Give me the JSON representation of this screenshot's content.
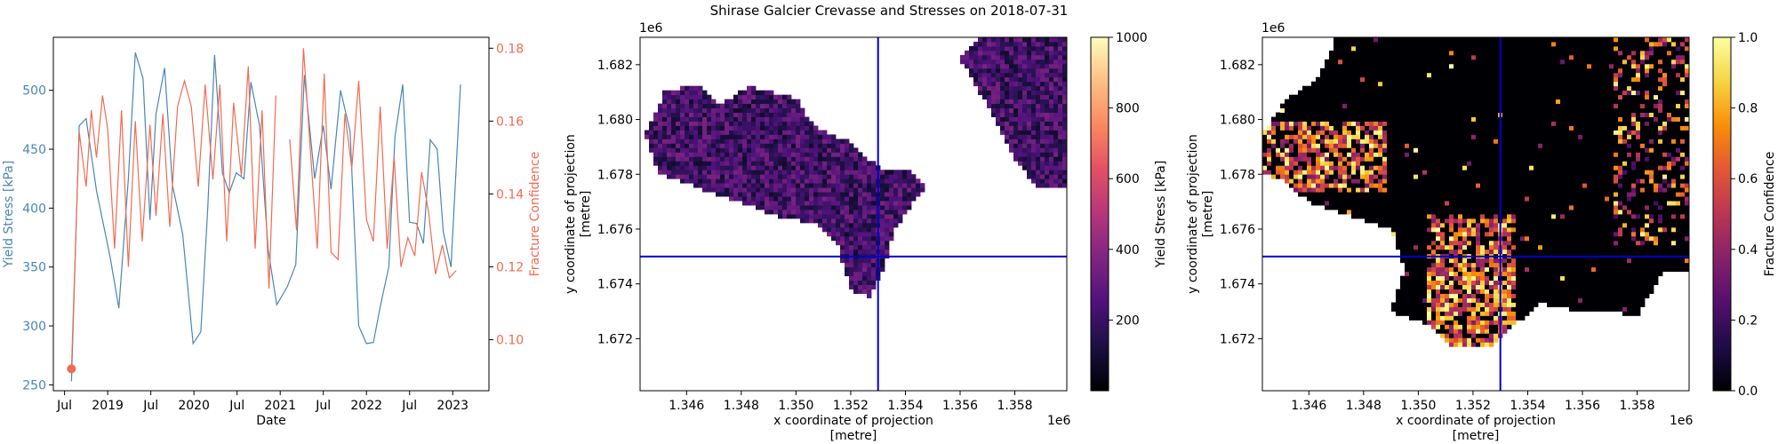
{
  "figure_title": "Shirase Galcier Crevasse and Stresses on 2018-07-31",
  "colors": {
    "yield": "#4a86b5",
    "fracture": "#f26b52",
    "crosshair": "#0000cc",
    "frame": "#000000"
  },
  "chart_data": [
    {
      "type": "line",
      "panel": "time-series",
      "xlabel": "Date",
      "x_ticks": [
        "Jul",
        "2019",
        "Jul",
        "2020",
        "Jul",
        "2021",
        "Jul",
        "2022",
        "Jul",
        "2023"
      ],
      "x_tick_values": [
        2018.5,
        2019.0,
        2019.5,
        2020.0,
        2020.5,
        2021.0,
        2021.5,
        2022.0,
        2022.5,
        2023.0
      ],
      "xlim": [
        2018.37,
        2023.42
      ],
      "series": [
        {
          "name": "Yield Stress [kPa]",
          "axis": "left",
          "ylim": [
            245,
            545
          ],
          "y_ticks": [
            "250",
            "300",
            "350",
            "400",
            "450",
            "500"
          ],
          "y_tick_values": [
            250,
            300,
            350,
            400,
            450,
            500
          ],
          "x": [
            2018.58,
            2018.67,
            2018.75,
            2018.87,
            2019.03,
            2019.13,
            2019.24,
            2019.32,
            2019.41,
            2019.49,
            2019.56,
            2019.66,
            2019.75,
            2019.87,
            2019.99,
            2020.08,
            2020.16,
            2020.24,
            2020.33,
            2020.41,
            2020.49,
            2020.58,
            2020.66,
            2020.76,
            2020.86,
            2020.96,
            2021.08,
            2021.18,
            2021.28,
            2021.4,
            2021.5,
            2021.59,
            2021.7,
            2021.81,
            2021.91,
            2022.0,
            2022.08,
            2022.17,
            2022.26,
            2022.33,
            2022.42,
            2022.5,
            2022.58,
            2022.66,
            2022.74,
            2022.82,
            2022.89,
            2022.98,
            2023.09
          ],
          "values": [
            253,
            470,
            476,
            415,
            358,
            315,
            425,
            532,
            510,
            390,
            480,
            519,
            420,
            378,
            285,
            295,
            400,
            530,
            430,
            413,
            430,
            425,
            507,
            470,
            365,
            318,
            333,
            352,
            513,
            425,
            470,
            416,
            500,
            465,
            300,
            285,
            286,
            320,
            350,
            460,
            505,
            388,
            387,
            370,
            458,
            450,
            380,
            350,
            505
          ]
        },
        {
          "name": "Fracture Confidence",
          "axis": "right",
          "ylim": [
            0.086,
            0.183
          ],
          "y_ticks": [
            "0.10",
            "0.12",
            "0.14",
            "0.16",
            "0.18"
          ],
          "y_tick_values": [
            0.1,
            0.12,
            0.14,
            0.16,
            0.18
          ],
          "x": [
            2018.58,
            2018.67,
            2018.75,
            2018.81,
            2018.87,
            2018.94,
            2019.0,
            2019.08,
            2019.16,
            2019.24,
            2019.32,
            2019.4,
            2019.49,
            2019.56,
            2019.64,
            2019.72,
            2019.81,
            2019.89,
            2019.97,
            2020.05,
            2020.13,
            2020.22,
            2020.3,
            2020.38,
            2020.46,
            2020.55,
            2020.63,
            2020.71,
            2020.79,
            2020.87,
            2020.95,
            2021.03,
            2021.11,
            2021.19,
            2021.27,
            2021.35,
            2021.43,
            2021.51,
            2021.59,
            2021.67,
            2021.75,
            2021.83,
            2021.91,
            2022.0,
            2022.08,
            2022.16,
            2022.24,
            2022.32,
            2022.4,
            2022.48,
            2022.56,
            2022.64,
            2022.72,
            2022.8,
            2022.88,
            2022.96,
            2023.04
          ],
          "values": [
            0.092,
            0.157,
            0.142,
            0.163,
            0.15,
            0.167,
            0.158,
            0.125,
            0.163,
            0.12,
            0.16,
            0.127,
            0.159,
            0.134,
            0.162,
            0.131,
            0.164,
            0.171,
            0.164,
            0.142,
            0.17,
            0.144,
            0.17,
            0.127,
            0.165,
            0.145,
            0.175,
            0.125,
            0.163,
            0.114,
            0.167,
            null,
            0.155,
            0.13,
            0.18,
            0.152,
            0.125,
            0.173,
            0.124,
            0.122,
            0.162,
            0.147,
            0.171,
            0.133,
            0.127,
            0.164,
            0.125,
            0.15,
            0.12,
            0.128,
            0.123,
            0.146,
            0.135,
            0.118,
            0.126,
            0.117,
            0.119
          ]
        }
      ],
      "marker": {
        "x": 2018.58,
        "value": 0.092
      }
    },
    {
      "type": "heatmap",
      "panel": "yield-stress-map",
      "xlabel": "x coordinate of projection\n[metre]",
      "ylabel": "y coordinate of projection\n[metre]",
      "x_offset_label": "1e6",
      "y_offset_label": "1e6",
      "xlim": [
        1.3443,
        1.3599
      ],
      "ylim": [
        1.6701,
        1.683
      ],
      "x_ticks": [
        "1.346",
        "1.348",
        "1.350",
        "1.352",
        "1.354",
        "1.356",
        "1.358"
      ],
      "x_tick_values": [
        1.346,
        1.348,
        1.35,
        1.352,
        1.354,
        1.356,
        1.358
      ],
      "y_ticks": [
        "1.672",
        "1.674",
        "1.676",
        "1.678",
        "1.680",
        "1.682"
      ],
      "y_tick_values": [
        1.672,
        1.674,
        1.676,
        1.678,
        1.68,
        1.682
      ],
      "crosshair": {
        "x": 1.353,
        "y": 1.675
      },
      "colorbar": {
        "label": "Yield Stress [kPa]",
        "range": [
          0,
          1000
        ],
        "ticks": [
          "200",
          "400",
          "600",
          "800",
          "1000"
        ],
        "tick_values": [
          200,
          400,
          600,
          800,
          1000
        ]
      }
    },
    {
      "type": "heatmap",
      "panel": "fracture-confidence-map",
      "xlabel": "x coordinate of projection\n[metre]",
      "ylabel": "y coordinate of projection\n[metre]",
      "x_offset_label": "1e6",
      "y_offset_label": "1e6",
      "xlim": [
        1.3443,
        1.3599
      ],
      "ylim": [
        1.6701,
        1.683
      ],
      "x_ticks": [
        "1.346",
        "1.348",
        "1.350",
        "1.352",
        "1.354",
        "1.356",
        "1.358"
      ],
      "x_tick_values": [
        1.346,
        1.348,
        1.35,
        1.352,
        1.354,
        1.356,
        1.358
      ],
      "y_ticks": [
        "1.672",
        "1.674",
        "1.676",
        "1.678",
        "1.680",
        "1.682"
      ],
      "y_tick_values": [
        1.672,
        1.674,
        1.676,
        1.678,
        1.68,
        1.682
      ],
      "crosshair": {
        "x": 1.353,
        "y": 1.675
      },
      "colorbar": {
        "label": "Fracture Confidence",
        "range": [
          0,
          1
        ],
        "ticks": [
          "0.0",
          "0.2",
          "0.4",
          "0.6",
          "0.8",
          "1.0"
        ],
        "tick_values": [
          0,
          0.2,
          0.4,
          0.6,
          0.8,
          1.0
        ]
      }
    }
  ]
}
